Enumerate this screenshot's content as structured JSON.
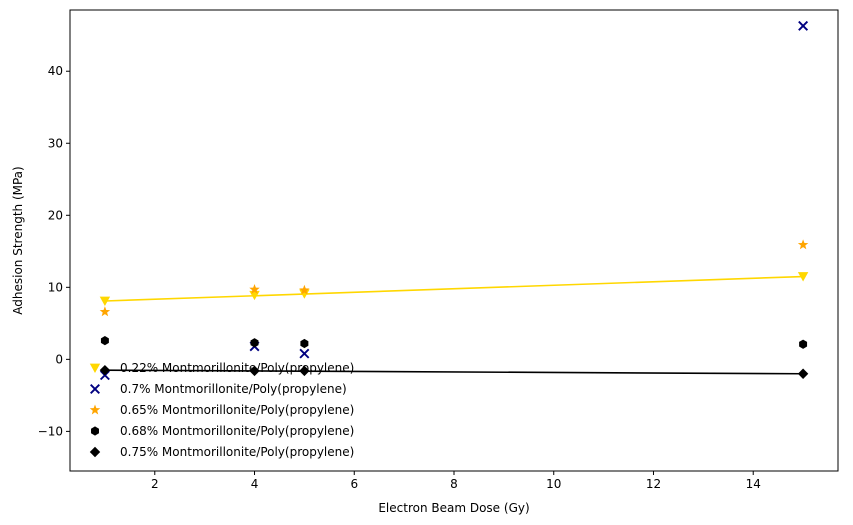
{
  "chart_data": {
    "type": "scatter",
    "xlabel": "Electron Beam Dose (Gy)",
    "ylabel": "Adhesion Strength (MPa)",
    "xlim": [
      0.3,
      15.7
    ],
    "ylim": [
      -15.5,
      48.5
    ],
    "xticks": [
      2,
      4,
      6,
      8,
      10,
      12,
      14
    ],
    "yticks": [
      -10,
      0,
      10,
      20,
      30,
      40
    ],
    "grid": false,
    "legend_position": "lower-left",
    "series": [
      {
        "name": "0.22% Montmorillonite/Poly(propylene)",
        "marker": "triangle-down",
        "color": "#FFD700",
        "points": [
          [
            1,
            8.1
          ],
          [
            4,
            8.9
          ],
          [
            5,
            9.1
          ],
          [
            15,
            11.5
          ]
        ],
        "fit_line": [
          [
            1,
            8.1
          ],
          [
            15,
            11.5
          ]
        ]
      },
      {
        "name": "0.7% Montmorillonite/Poly(propylene)",
        "marker": "x",
        "color": "#000080",
        "points": [
          [
            1,
            -2.2
          ],
          [
            4,
            1.8
          ],
          [
            5,
            0.8
          ],
          [
            15,
            46.3
          ]
        ]
      },
      {
        "name": "0.65% Montmorillonite/Poly(propylene)",
        "marker": "star",
        "color": "#FFA500",
        "points": [
          [
            1,
            6.6
          ],
          [
            4,
            9.7
          ],
          [
            5,
            9.6
          ],
          [
            15,
            15.9
          ]
        ]
      },
      {
        "name": "0.68% Montmorillonite/Poly(propylene)",
        "marker": "hexagon",
        "color": "#000000",
        "points": [
          [
            1,
            2.6
          ],
          [
            4,
            2.3
          ],
          [
            5,
            2.2
          ],
          [
            15,
            2.1
          ]
        ]
      },
      {
        "name": "0.75% Montmorillonite/Poly(propylene)",
        "marker": "diamond",
        "color": "#000000",
        "points": [
          [
            1,
            -1.5
          ],
          [
            4,
            -1.6
          ],
          [
            5,
            -1.6
          ],
          [
            15,
            -2.0
          ]
        ],
        "fit_line": [
          [
            1,
            -1.5
          ],
          [
            15,
            -2.0
          ]
        ]
      }
    ]
  }
}
